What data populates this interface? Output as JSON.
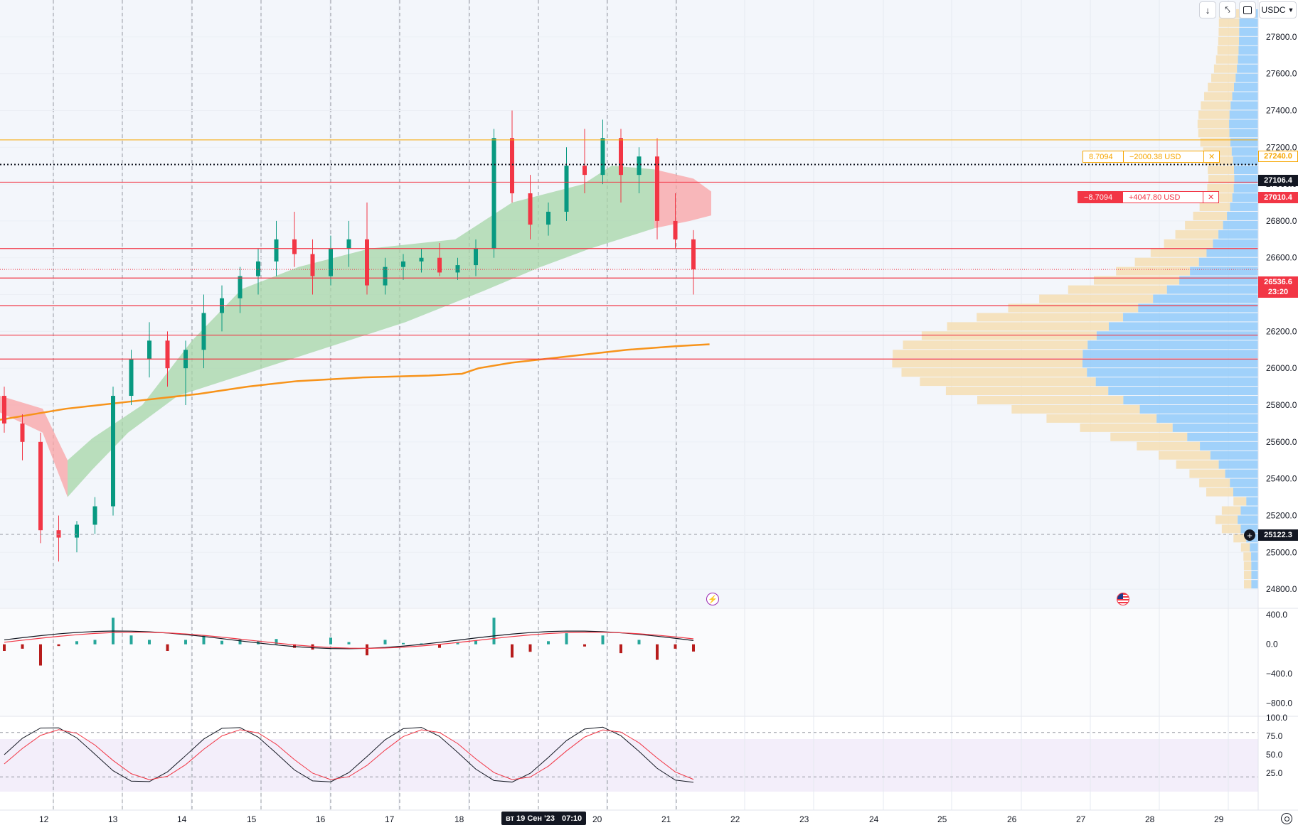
{
  "toolbar": {
    "download_icon": "arrow-down-icon",
    "collapse_icon": "collapse-icon",
    "fullscreen_icon": "fullscreen-icon",
    "currency": "USDC",
    "currency_chevron": "chevron-down-icon"
  },
  "main_axis": {
    "ticks": [
      "24800.0",
      "25000.0",
      "25200.0",
      "25400.0",
      "25600.0",
      "25800.0",
      "26000.0",
      "26200.0",
      "26400.0",
      "26600.0",
      "26800.0",
      "27000.0",
      "27200.0",
      "27400.0",
      "27600.0",
      "27800.0"
    ]
  },
  "price_labels": {
    "order_high": "27240.0",
    "crosshair": "27106.4",
    "order_low": "27010.4",
    "last_price": "26536.6",
    "countdown": "23:20",
    "cursor_price": "25122.3"
  },
  "orders": [
    {
      "qty": "8.7094",
      "pnl": "−2000.38 USD",
      "close": "✕",
      "color": "#f7a600"
    },
    {
      "qty": "−8.7094",
      "pnl": "+4047.80 USD",
      "close": "✕",
      "color": "#f23645"
    }
  ],
  "time_axis": {
    "labels": [
      "12",
      "13",
      "14",
      "15",
      "16",
      "17",
      "18",
      "20",
      "21",
      "22",
      "23",
      "24",
      "25",
      "26",
      "27",
      "28",
      "29"
    ],
    "crosshair_date": "вт 19 Сен '23",
    "crosshair_time": "07:10"
  },
  "macd_axis": {
    "ticks": [
      "400.0",
      "0.0",
      "−400.0",
      "−800.0"
    ]
  },
  "stoch_axis": {
    "ticks": [
      "100.0",
      "75.0",
      "50.0",
      "25.0"
    ]
  },
  "events": {
    "left_icon": "lightning-icon",
    "right_icon": "us-flag-icon"
  },
  "settings_icon": "gear-icon",
  "colors": {
    "up": "#089981",
    "down": "#f23645",
    "ma": "#f7931a",
    "cloud_up": "#a5d6a7",
    "cloud_down": "#faa1a4",
    "vp_up": "#90caf9",
    "vp_down": "#f5deb3",
    "order_buy": "#f7a600"
  },
  "chart_data": {
    "type": "candlestick",
    "symbol_quote": "USDC",
    "y_range": [
      24700,
      28000
    ],
    "last_price": 26536.6,
    "candles": [
      [
        25850,
        25900,
        25650,
        25700
      ],
      [
        25700,
        25750,
        25500,
        25600
      ],
      [
        25600,
        25650,
        25050,
        25120
      ],
      [
        25120,
        25200,
        24950,
        25080
      ],
      [
        25080,
        25170,
        25000,
        25150
      ],
      [
        25150,
        25300,
        25100,
        25250
      ],
      [
        25250,
        25900,
        25200,
        25850
      ],
      [
        25850,
        26100,
        25800,
        26050
      ],
      [
        26050,
        26250,
        25950,
        26150
      ],
      [
        26150,
        26200,
        25900,
        26000
      ],
      [
        26000,
        26150,
        25800,
        26100
      ],
      [
        26100,
        26400,
        26000,
        26300
      ],
      [
        26300,
        26450,
        26200,
        26380
      ],
      [
        26380,
        26550,
        26300,
        26500
      ],
      [
        26500,
        26650,
        26400,
        26580
      ],
      [
        26580,
        26800,
        26500,
        26700
      ],
      [
        26700,
        26850,
        26550,
        26620
      ],
      [
        26620,
        26700,
        26400,
        26500
      ],
      [
        26500,
        26720,
        26450,
        26650
      ],
      [
        26650,
        26800,
        26550,
        26700
      ],
      [
        26700,
        26900,
        26400,
        26450
      ],
      [
        26450,
        26600,
        26400,
        26550
      ],
      [
        26550,
        26620,
        26480,
        26580
      ],
      [
        26580,
        26650,
        26520,
        26600
      ],
      [
        26600,
        26680,
        26500,
        26520
      ],
      [
        26520,
        26600,
        26480,
        26560
      ],
      [
        26560,
        26700,
        26500,
        26650
      ],
      [
        26650,
        27300,
        26600,
        27250
      ],
      [
        27250,
        27400,
        26900,
        26950
      ],
      [
        26950,
        27050,
        26700,
        26780
      ],
      [
        26780,
        26900,
        26720,
        26850
      ],
      [
        26850,
        27200,
        26800,
        27100
      ],
      [
        27100,
        27300,
        26950,
        27050
      ],
      [
        27050,
        27350,
        27000,
        27250
      ],
      [
        27250,
        27300,
        26900,
        27050
      ],
      [
        27050,
        27200,
        26950,
        27150
      ],
      [
        27150,
        27250,
        26700,
        26800
      ],
      [
        26800,
        26950,
        26650,
        26700
      ],
      [
        26700,
        26750,
        26400,
        26536.6
      ]
    ],
    "moving_average": [
      [
        0,
        25720
      ],
      [
        0.08,
        25780
      ],
      [
        0.16,
        25820
      ],
      [
        0.24,
        25860
      ],
      [
        0.3,
        25900
      ],
      [
        0.36,
        25930
      ],
      [
        0.44,
        25950
      ],
      [
        0.52,
        25960
      ],
      [
        0.56,
        25970
      ],
      [
        0.58,
        26000
      ],
      [
        0.62,
        26030
      ],
      [
        0.68,
        26060
      ],
      [
        0.76,
        26100
      ],
      [
        0.82,
        26120
      ],
      [
        0.86,
        26130
      ]
    ],
    "price_levels": [
      27240.0,
      27106.4,
      27010.4,
      26650,
      26490,
      26340,
      26180,
      26050
    ],
    "volume_profile": {
      "bins_from": 24800,
      "bins_to": 27950,
      "bin_step": 50
    },
    "macd": {
      "y_range": [
        -900,
        450
      ]
    },
    "stochastic": {
      "y_range": [
        0,
        100
      ],
      "bands": [
        20,
        80
      ]
    }
  }
}
